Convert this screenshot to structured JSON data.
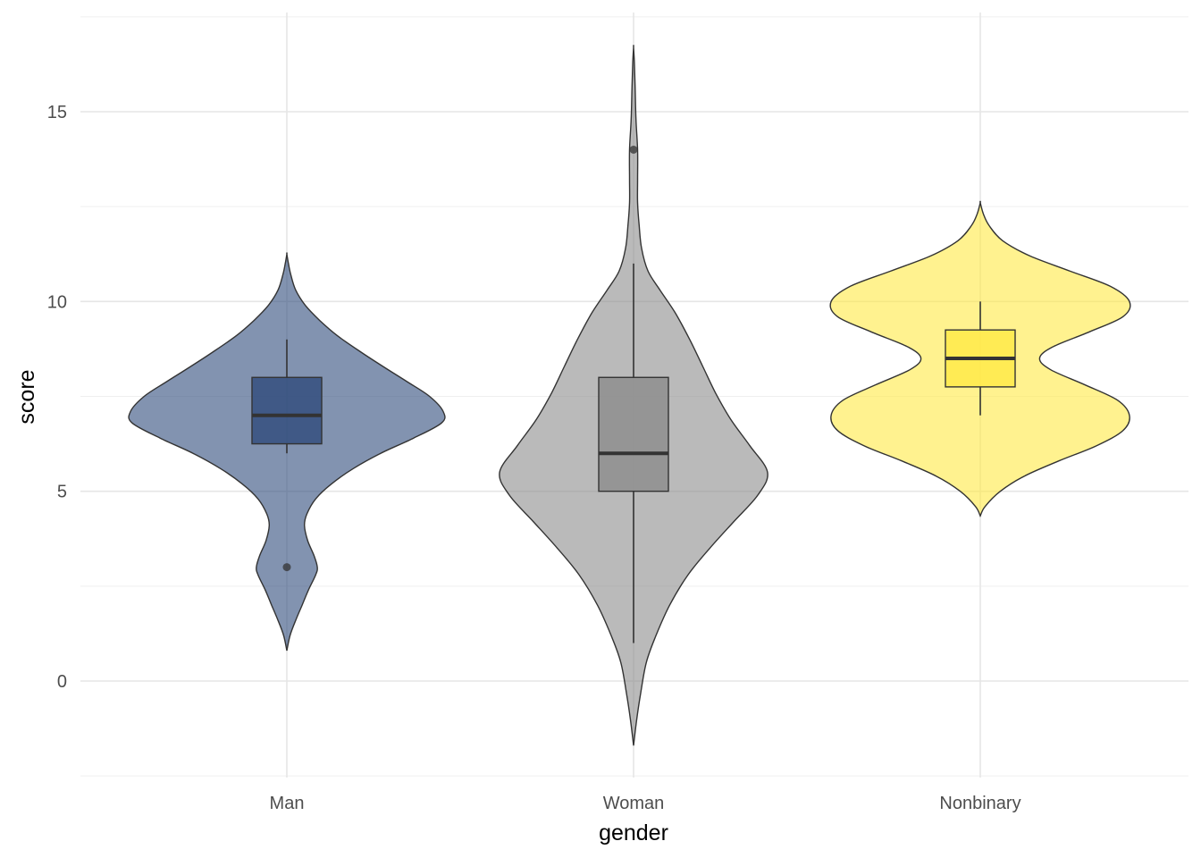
{
  "chart_data": {
    "type": "violin",
    "xlabel": "gender",
    "ylabel": "score",
    "categories": [
      "Man",
      "Woman",
      "Nonbinary"
    ],
    "ylim": [
      -2.5,
      17.6
    ],
    "y_ticks": [
      0,
      5,
      10,
      15
    ],
    "y_tick_labels": [
      "0",
      "5",
      "10",
      "15"
    ],
    "grid": true,
    "legend": "none",
    "colors": {
      "Man": "#2f4b7c",
      "Woman": "#8c8c8c",
      "Nonbinary": "#ffe945"
    },
    "series": [
      {
        "category": "Man",
        "box": {
          "q1": 6.25,
          "median": 7,
          "q3": 8,
          "whisker_low": 6,
          "whisker_high": 9
        },
        "outliers": [
          3
        ],
        "violin": {
          "y": [
            0.8,
            1.2,
            1.6,
            2.0,
            2.4,
            2.8,
            3.0,
            3.3,
            3.7,
            4.1,
            4.4,
            4.8,
            5.2,
            5.6,
            6.0,
            6.4,
            6.8,
            7.1,
            7.5,
            7.9,
            8.3,
            8.7,
            9.1,
            9.5,
            9.9,
            10.3,
            10.7,
            11.0,
            11.25
          ],
          "width": [
            0.0,
            0.04,
            0.11,
            0.19,
            0.27,
            0.36,
            0.38,
            0.34,
            0.26,
            0.22,
            0.25,
            0.36,
            0.56,
            0.83,
            1.17,
            1.58,
            1.93,
            1.95,
            1.78,
            1.49,
            1.19,
            0.9,
            0.63,
            0.41,
            0.23,
            0.11,
            0.05,
            0.02,
            0.0
          ]
        }
      },
      {
        "category": "Woman",
        "box": {
          "q1": 5,
          "median": 6,
          "q3": 8,
          "whisker_low": 1,
          "whisker_high": 11
        },
        "outliers": [
          14
        ],
        "violin": {
          "y": [
            -1.7,
            -1.0,
            -0.3,
            0.5,
            1.2,
            2.0,
            2.8,
            3.5,
            4.2,
            4.9,
            5.5,
            6.2,
            6.9,
            7.6,
            8.3,
            9.0,
            9.7,
            10.3,
            10.8,
            11.4,
            12.0,
            12.6,
            13.2,
            14.0,
            14.8,
            15.6,
            16.3,
            16.7
          ],
          "width": [
            0.0,
            0.04,
            0.09,
            0.16,
            0.28,
            0.45,
            0.68,
            0.95,
            1.25,
            1.55,
            1.67,
            1.45,
            1.21,
            1.02,
            0.86,
            0.7,
            0.52,
            0.33,
            0.18,
            0.1,
            0.07,
            0.05,
            0.05,
            0.05,
            0.03,
            0.02,
            0.01,
            0.0
          ]
        }
      },
      {
        "category": "Nonbinary",
        "box": {
          "q1": 7.75,
          "median": 8.5,
          "q3": 9.25,
          "whisker_low": 7,
          "whisker_high": 10
        },
        "outliers": [],
        "violin": {
          "y": [
            4.35,
            4.6,
            5.0,
            5.4,
            5.8,
            6.2,
            6.6,
            7.0,
            7.4,
            7.8,
            8.2,
            8.5,
            8.8,
            9.2,
            9.6,
            10.0,
            10.4,
            10.8,
            11.2,
            11.6,
            12.0,
            12.3,
            12.6
          ],
          "width": [
            0.0,
            0.06,
            0.25,
            0.55,
            0.98,
            1.45,
            1.78,
            1.86,
            1.71,
            1.31,
            0.88,
            0.74,
            0.9,
            1.36,
            1.78,
            1.86,
            1.62,
            1.12,
            0.62,
            0.28,
            0.11,
            0.04,
            0.0
          ]
        }
      }
    ]
  }
}
